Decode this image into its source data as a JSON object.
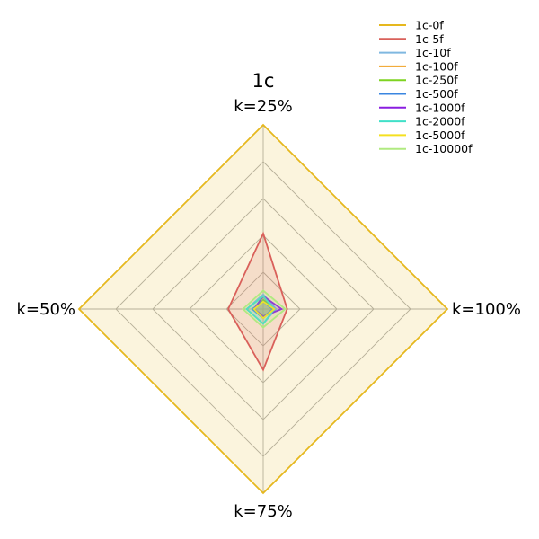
{
  "chart_data": {
    "type": "radar",
    "title": "1c",
    "axes": [
      "k=25%",
      "k=100%",
      "k=75%",
      "k=50%"
    ],
    "rlim": [
      0,
      1
    ],
    "grid": true,
    "legend_position": "top-right",
    "series": [
      {
        "name": "1c-0f",
        "color": "#e6b81e",
        "values": [
          1.0,
          1.0,
          1.0,
          1.0
        ]
      },
      {
        "name": "1c-5f",
        "color": "#d9605a",
        "values": [
          0.41,
          0.13,
          0.33,
          0.19
        ]
      },
      {
        "name": "1c-10f",
        "color": "#7fb8e0",
        "values": [
          0.08,
          0.07,
          0.08,
          0.09
        ]
      },
      {
        "name": "1c-100f",
        "color": "#f0a020",
        "values": [
          0.07,
          0.05,
          0.05,
          0.05
        ]
      },
      {
        "name": "1c-250f",
        "color": "#7ed321",
        "values": [
          0.05,
          0.06,
          0.04,
          0.05
        ]
      },
      {
        "name": "1c-500f",
        "color": "#3a86e0",
        "values": [
          0.04,
          0.05,
          0.05,
          0.06
        ]
      },
      {
        "name": "1c-1000f",
        "color": "#8a1ee0",
        "values": [
          0.07,
          0.1,
          0.04,
          0.05
        ]
      },
      {
        "name": "1c-2000f",
        "color": "#40e0c8",
        "values": [
          0.07,
          0.06,
          0.08,
          0.09
        ]
      },
      {
        "name": "1c-5000f",
        "color": "#f5e020",
        "values": [
          0.04,
          0.06,
          0.05,
          0.05
        ]
      },
      {
        "name": "1c-10000f",
        "color": "#b0ea80",
        "values": [
          0.1,
          0.12,
          0.1,
          0.11
        ]
      }
    ]
  }
}
